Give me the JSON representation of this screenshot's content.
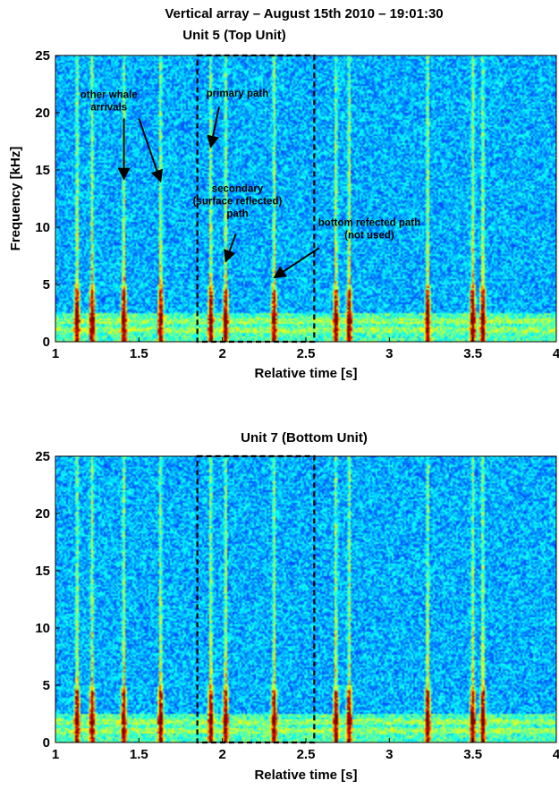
{
  "figure": {
    "title_line1": "Vertical array – August 15th 2010 – 19:01:30"
  },
  "chart_data": [
    {
      "type": "heatmap",
      "title": "Unit 5 (Top Unit)",
      "xlabel": "Relative time [s]",
      "ylabel": "Frequency [kHz]",
      "xlim": [
        1,
        4
      ],
      "ylim": [
        0,
        25
      ],
      "xticks": [
        1,
        1.5,
        2,
        2.5,
        3,
        3.5,
        4
      ],
      "yticks": [
        0,
        5,
        10,
        15,
        20,
        25
      ],
      "colormap": "jet",
      "arrival_times": [
        1.13,
        1.22,
        1.41,
        1.63,
        1.93,
        2.02,
        2.31,
        2.68,
        2.76,
        3.23,
        3.5,
        3.56
      ],
      "highlight_box": {
        "x0": 1.85,
        "x1": 2.55,
        "y0": 0,
        "y1": 25
      },
      "annotations": [
        {
          "lines": [
            "other whale",
            "arrivals"
          ],
          "x": 1.32,
          "y": 21.3,
          "arrows": [
            [
              1.41,
              19.5,
              1.41,
              14.2
            ],
            [
              1.5,
              19.5,
              1.63,
              14.0
            ]
          ]
        },
        {
          "lines": [
            "primary path"
          ],
          "x": 2.09,
          "y": 21.4,
          "arrows": [
            [
              1.98,
              20.5,
              1.93,
              17.0
            ]
          ]
        },
        {
          "lines": [
            "secondary",
            "(surface reflected)",
            "path"
          ],
          "x": 2.09,
          "y": 13.1,
          "arrows": [
            [
              2.08,
              9.4,
              2.02,
              7.0
            ]
          ]
        },
        {
          "lines": [
            "bottom refected path",
            "(not used)"
          ],
          "x": 2.88,
          "y": 10.1,
          "arrows": [
            [
              2.58,
              8.2,
              2.31,
              5.6
            ]
          ]
        }
      ]
    },
    {
      "type": "heatmap",
      "title": "Unit 7 (Bottom Unit)",
      "xlabel": "Relative time [s]",
      "ylabel": "",
      "xlim": [
        1,
        4
      ],
      "ylim": [
        0,
        25
      ],
      "xticks": [
        1,
        1.5,
        2,
        2.5,
        3,
        3.5,
        4
      ],
      "yticks": [
        0,
        5,
        10,
        15,
        20,
        25
      ],
      "colormap": "jet",
      "arrival_times": [
        1.13,
        1.22,
        1.41,
        1.63,
        1.93,
        2.02,
        2.31,
        2.68,
        2.76,
        3.23,
        3.5,
        3.56
      ],
      "highlight_box": {
        "x0": 1.85,
        "x1": 2.55,
        "y0": 0,
        "y1": 25
      },
      "annotations": []
    }
  ]
}
